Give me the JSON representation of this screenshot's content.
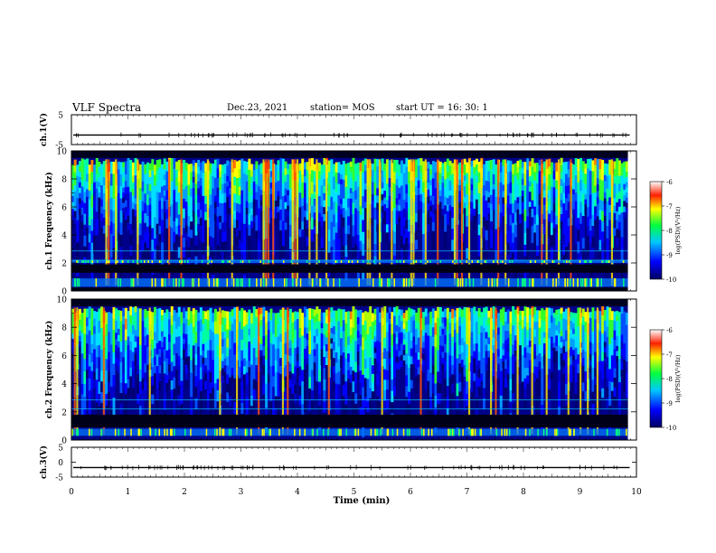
{
  "header": {
    "title": "VLF Spectra",
    "date": "Dec.23, 2021",
    "station": "station= MOS",
    "start_ut": "start  UT =   16: 30: 1"
  },
  "chart_data": [
    {
      "type": "line",
      "id": "ch1-waveform",
      "ylabel": "ch.1(V)",
      "ylim": [
        -5,
        5
      ],
      "yticks": [
        "5",
        "-5"
      ],
      "xlim": [
        0,
        10
      ],
      "level": -1.8
    },
    {
      "type": "heatmap",
      "id": "ch1-spectrogram",
      "ylabel": "ch.1 Frequency (kHz)",
      "ylim": [
        0,
        10
      ],
      "yticks": [
        "0",
        "2",
        "4",
        "6",
        "8",
        "10"
      ],
      "xlim": [
        0,
        9.85
      ],
      "colorbar": {
        "label": "log(PSD)(V²/Hz)",
        "ticks": [
          "-6",
          "-7",
          "-8",
          "-9",
          "-10"
        ],
        "range": [
          -10,
          -6
        ]
      },
      "dark_bands_khz": [
        [
          1.3,
          1.9
        ],
        [
          0.0,
          0.25
        ]
      ],
      "bright_bands_khz": [
        [
          0.3,
          0.9
        ],
        [
          2.0,
          2.2
        ]
      ]
    },
    {
      "type": "heatmap",
      "id": "ch2-spectrogram",
      "ylabel": "ch.2 Frequency (kHz)",
      "ylim": [
        0,
        10
      ],
      "yticks": [
        "0",
        "2",
        "4",
        "6",
        "8",
        "10"
      ],
      "xlim": [
        0,
        9.85
      ],
      "colorbar": {
        "label": "log(PSD)(V²/Hz)",
        "ticks": [
          "-6",
          "-7",
          "-8",
          "-9",
          "-10"
        ],
        "range": [
          -10,
          -6
        ]
      },
      "dark_bands_khz": [
        [
          0.9,
          1.8
        ]
      ],
      "bright_bands_khz": [
        [
          0.3,
          0.8
        ]
      ]
    },
    {
      "type": "line",
      "id": "ch2-waveform",
      "ylabel": "ch.3(V)",
      "ylim": [
        -5,
        5
      ],
      "yticks": [
        "5",
        "0",
        "-5"
      ],
      "xlim": [
        0,
        10
      ],
      "level": -1.8
    }
  ],
  "xaxis": {
    "label": "Time  (min)",
    "ticks": [
      "0",
      "1",
      "2",
      "3",
      "4",
      "5",
      "6",
      "7",
      "8",
      "9",
      "10"
    ]
  }
}
